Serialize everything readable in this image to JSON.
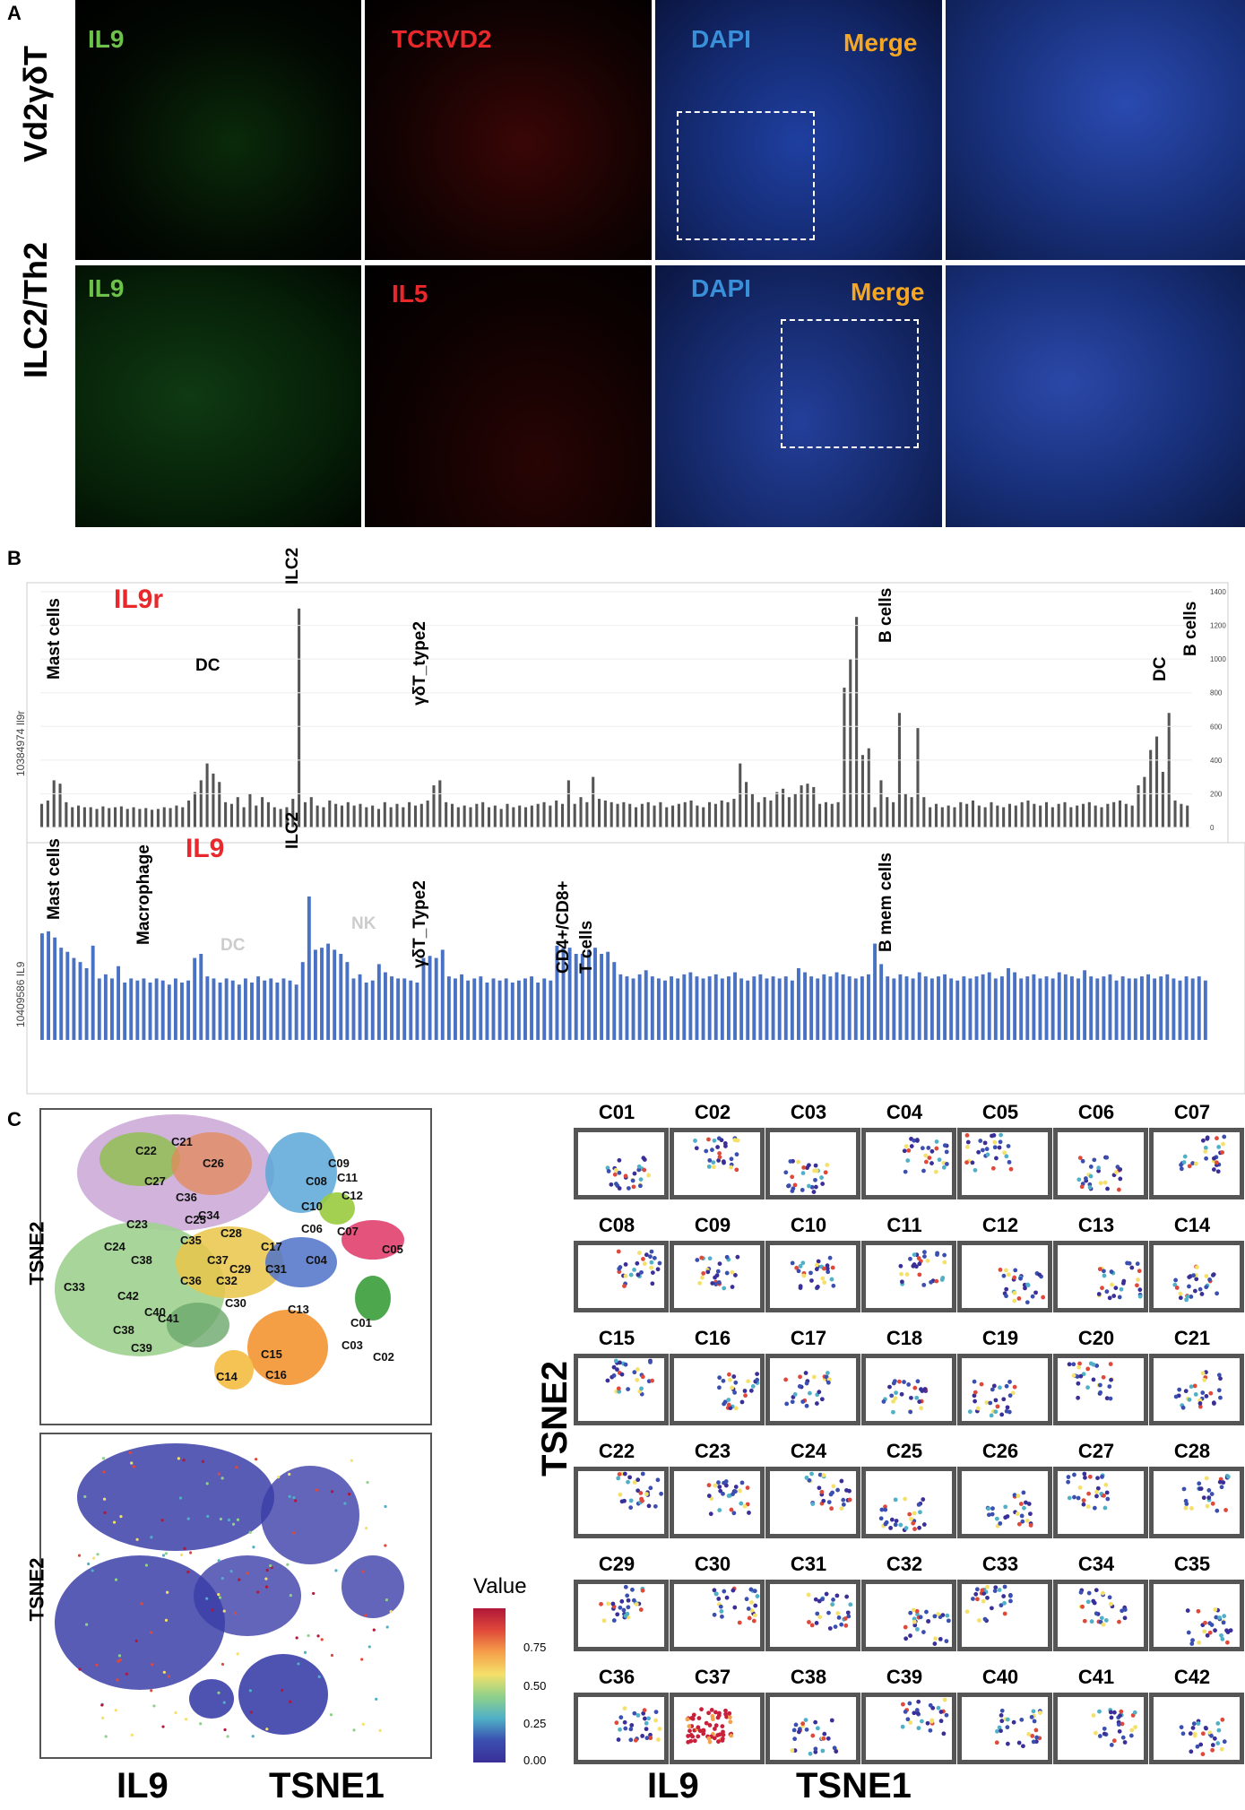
{
  "panels": {
    "a": "A",
    "b": "B",
    "c": "C"
  },
  "panel_a": {
    "rows": [
      {
        "label": "Vd2γδT",
        "channels": [
          "IL9",
          "TCRVD2",
          "DAPI",
          "Merge"
        ]
      },
      {
        "label": "ILC2/Th2",
        "channels": [
          "IL9",
          "IL5",
          "DAPI",
          "Merge"
        ]
      }
    ],
    "colors": {
      "il9": "#6cc24a",
      "red": "#e8282b",
      "dapi": "#3a8fd9",
      "merge": "#f5a623"
    }
  },
  "panel_b": {
    "chart1": {
      "title": "IL9r",
      "ylabel": "10384974 Il9r",
      "annotations": [
        "Mast cells",
        "DC",
        "ILC2",
        "γδT_type2",
        "B cells",
        "DC",
        "B cells"
      ],
      "yticks": [
        "0",
        "200",
        "400",
        "600",
        "800",
        "1000",
        "1200",
        "1400"
      ]
    },
    "chart2": {
      "title": "IL9",
      "ylabel": "10409586 IL9",
      "annotations": [
        "Mast cells",
        "Macrophage",
        "DC",
        "ILC2",
        "NK",
        "γδT_Type2",
        "CD4+/CD8+",
        "T cells",
        "B mem cells"
      ]
    }
  },
  "chart_data": [
    {
      "type": "bar",
      "title": "IL9r",
      "ylabel": "10384974 Il9r",
      "ylim": [
        0,
        1400
      ],
      "values": [
        140,
        160,
        280,
        260,
        150,
        120,
        130,
        120,
        120,
        110,
        125,
        115,
        120,
        125,
        110,
        120,
        110,
        115,
        105,
        110,
        120,
        115,
        130,
        120,
        160,
        210,
        280,
        380,
        320,
        270,
        150,
        140,
        180,
        120,
        200,
        130,
        180,
        150,
        120,
        110,
        120,
        170,
        1300,
        150,
        180,
        130,
        120,
        160,
        140,
        130,
        150,
        130,
        140,
        120,
        130,
        110,
        150,
        120,
        140,
        120,
        150,
        130,
        140,
        160,
        250,
        280,
        150,
        140,
        120,
        130,
        120,
        140,
        150,
        120,
        130,
        110,
        140,
        120,
        130,
        120,
        130,
        140,
        150,
        130,
        160,
        140,
        280,
        140,
        180,
        150,
        300,
        170,
        160,
        150,
        140,
        150,
        140,
        120,
        140,
        150,
        130,
        150,
        120,
        130,
        140,
        150,
        160,
        130,
        120,
        150,
        140,
        160,
        150,
        170,
        380,
        270,
        200,
        150,
        180,
        160,
        210,
        230,
        180,
        200,
        250,
        260,
        240,
        140,
        150,
        140,
        150,
        830,
        1000,
        1250,
        430,
        470,
        120,
        280,
        180,
        150,
        680,
        200,
        180,
        590,
        180,
        120,
        140,
        120,
        130,
        120,
        150,
        140,
        160,
        130,
        120,
        150,
        130,
        120,
        140,
        130,
        150,
        160,
        140,
        130,
        150,
        120,
        140,
        150,
        120,
        130,
        140,
        150,
        130,
        120,
        140,
        150,
        160,
        140,
        130,
        250,
        300,
        460,
        540,
        330,
        680,
        160,
        140,
        130
      ]
    },
    {
      "type": "bar",
      "title": "IL9",
      "ylabel": "10409586 IL9",
      "values": [
        52,
        53,
        50,
        45,
        43,
        40,
        38,
        35,
        46,
        30,
        32,
        30,
        36,
        28,
        30,
        29,
        30,
        28,
        30,
        29,
        27,
        30,
        28,
        29,
        40,
        42,
        31,
        30,
        28,
        30,
        29,
        27,
        30,
        28,
        31,
        29,
        30,
        28,
        30,
        29,
        27,
        38,
        70,
        44,
        45,
        47,
        44,
        42,
        38,
        30,
        32,
        28,
        29,
        37,
        33,
        31,
        30,
        30,
        29,
        28,
        40,
        41,
        40,
        44,
        31,
        30,
        32,
        29,
        30,
        31,
        28,
        30,
        29,
        30,
        28,
        29,
        30,
        31,
        28,
        30,
        29,
        46,
        45,
        45,
        42,
        42,
        44,
        45,
        42,
        43,
        38,
        32,
        31,
        30,
        32,
        34,
        31,
        30,
        29,
        31,
        30,
        32,
        33,
        31,
        30,
        31,
        32,
        30,
        31,
        33,
        30,
        29,
        31,
        32,
        30,
        31,
        30,
        31,
        29,
        35,
        33,
        31,
        30,
        32,
        31,
        33,
        32,
        31,
        30,
        31,
        32,
        47,
        37,
        31,
        30,
        32,
        31,
        30,
        33,
        31,
        30,
        31,
        32,
        30,
        29,
        31,
        30,
        31,
        32,
        33,
        30,
        31,
        35,
        33,
        30,
        31,
        32,
        30,
        31,
        30,
        33,
        32,
        31,
        30,
        34,
        31,
        30,
        31,
        32,
        29,
        31,
        30,
        30,
        31,
        32,
        30,
        31,
        32,
        30,
        29,
        31,
        30,
        31,
        29
      ]
    }
  ],
  "panel_c": {
    "axis_labels": {
      "tsne2": "TSNE2",
      "tsne1": "TSNE1",
      "il9": "IL9"
    },
    "main_clusters": [
      "C22",
      "C21",
      "C26",
      "C27",
      "C09",
      "C08",
      "C11",
      "C12",
      "C36",
      "C34",
      "C25",
      "C10",
      "C06",
      "C07",
      "C23",
      "C24",
      "C35",
      "C38",
      "C04",
      "C29",
      "C17",
      "C05",
      "C37",
      "C33",
      "C31",
      "C42",
      "C36",
      "C32",
      "C40",
      "C30",
      "C13",
      "C01",
      "C38",
      "C41",
      "C03",
      "C39",
      "C02",
      "C28",
      "C15",
      "C16",
      "C14"
    ],
    "clusters": [
      "C01",
      "C02",
      "C03",
      "C04",
      "C05",
      "C06",
      "C07",
      "C08",
      "C09",
      "C10",
      "C11",
      "C12",
      "C13",
      "C14",
      "C15",
      "C16",
      "C17",
      "C18",
      "C19",
      "C20",
      "C21",
      "C22",
      "C23",
      "C24",
      "C25",
      "C26",
      "C27",
      "C28",
      "C29",
      "C30",
      "C31",
      "C32",
      "C33",
      "C34",
      "C35",
      "C36",
      "C37",
      "C38",
      "C39",
      "C40",
      "C41",
      "C42"
    ],
    "legend": {
      "title": "Value",
      "ticks": [
        "0.75",
        "0.50",
        "0.25",
        "0.00"
      ]
    }
  }
}
